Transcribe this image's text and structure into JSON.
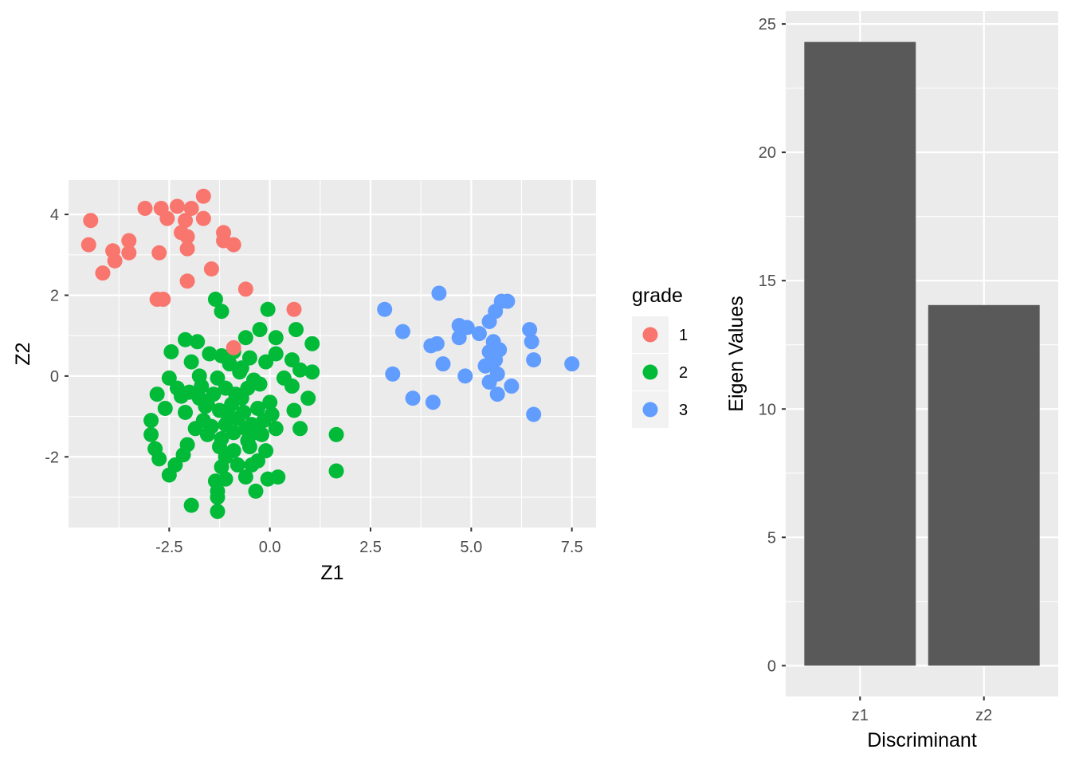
{
  "chart_data": [
    {
      "type": "scatter",
      "xlabel": "Z1",
      "ylabel": "Z2",
      "xlim": [
        -5.0,
        8.1
      ],
      "ylim": [
        -3.75,
        4.85
      ],
      "xticks": [
        -2.5,
        0.0,
        2.5,
        5.0,
        7.5
      ],
      "xtick_labels": [
        "-2.5",
        "0.0",
        "2.5",
        "5.0",
        "7.5"
      ],
      "yticks": [
        -2,
        0,
        2,
        4
      ],
      "ytick_labels": [
        "-2",
        "0",
        "2",
        "4"
      ],
      "grid": true,
      "legend": {
        "title": "grade",
        "placement": "right",
        "entries": [
          {
            "label": "1",
            "color": "#F8766D"
          },
          {
            "label": "2",
            "color": "#00BA38"
          },
          {
            "label": "3",
            "color": "#619CFF"
          }
        ]
      },
      "series": [
        {
          "name": "1",
          "color": "#F8766D",
          "points": [
            [
              -4.45,
              3.85
            ],
            [
              -4.5,
              3.25
            ],
            [
              -3.9,
              3.1
            ],
            [
              -3.85,
              2.85
            ],
            [
              -4.15,
              2.55
            ],
            [
              -3.5,
              3.35
            ],
            [
              -3.5,
              3.05
            ],
            [
              -3.1,
              4.15
            ],
            [
              -2.7,
              4.15
            ],
            [
              -2.55,
              3.9
            ],
            [
              -2.3,
              4.2
            ],
            [
              -1.95,
              4.15
            ],
            [
              -1.65,
              4.45
            ],
            [
              -1.65,
              3.9
            ],
            [
              -2.1,
              3.85
            ],
            [
              -2.2,
              3.55
            ],
            [
              -2.05,
              3.45
            ],
            [
              -2.05,
              3.15
            ],
            [
              -2.75,
              3.05
            ],
            [
              -1.15,
              3.55
            ],
            [
              -1.15,
              3.35
            ],
            [
              -0.9,
              3.25
            ],
            [
              -1.45,
              2.65
            ],
            [
              -2.05,
              2.35
            ],
            [
              -2.8,
              1.9
            ],
            [
              -2.65,
              1.9
            ],
            [
              -0.6,
              2.15
            ],
            [
              0.6,
              1.65
            ],
            [
              -0.9,
              0.7
            ]
          ]
        },
        {
          "name": "2",
          "color": "#00BA38",
          "points": [
            [
              -1.35,
              1.9
            ],
            [
              -1.2,
              1.6
            ],
            [
              -0.05,
              1.65
            ],
            [
              -2.1,
              0.9
            ],
            [
              -1.8,
              0.85
            ],
            [
              -0.6,
              0.95
            ],
            [
              -0.25,
              1.15
            ],
            [
              0.15,
              0.95
            ],
            [
              0.65,
              1.15
            ],
            [
              1.05,
              0.8
            ],
            [
              -2.45,
              0.6
            ],
            [
              -1.5,
              0.55
            ],
            [
              -1.2,
              0.5
            ],
            [
              -0.9,
              0.6
            ],
            [
              -0.5,
              0.45
            ],
            [
              0.15,
              0.55
            ],
            [
              0.55,
              0.4
            ],
            [
              -1.95,
              0.35
            ],
            [
              -1.0,
              0.3
            ],
            [
              -0.7,
              0.2
            ],
            [
              -0.1,
              0.35
            ],
            [
              0.75,
              0.15
            ],
            [
              1.05,
              0.1
            ],
            [
              -2.5,
              -0.05
            ],
            [
              -1.75,
              0.0
            ],
            [
              -1.3,
              -0.05
            ],
            [
              -0.75,
              0.1
            ],
            [
              -0.4,
              -0.1
            ],
            [
              0.35,
              -0.05
            ],
            [
              0.55,
              -0.25
            ],
            [
              -2.8,
              -0.45
            ],
            [
              -2.3,
              -0.3
            ],
            [
              -2.0,
              -0.4
            ],
            [
              -1.7,
              -0.25
            ],
            [
              -1.4,
              -0.45
            ],
            [
              -1.1,
              -0.3
            ],
            [
              -0.85,
              -0.45
            ],
            [
              -0.55,
              -0.3
            ],
            [
              -0.25,
              -0.2
            ],
            [
              0.0,
              -0.65
            ],
            [
              0.95,
              -0.55
            ],
            [
              -2.6,
              -0.8
            ],
            [
              -2.1,
              -0.9
            ],
            [
              -1.6,
              -0.75
            ],
            [
              -1.25,
              -0.85
            ],
            [
              -0.95,
              -0.7
            ],
            [
              -0.65,
              -0.9
            ],
            [
              -0.3,
              -0.8
            ],
            [
              0.05,
              -0.95
            ],
            [
              0.6,
              -0.85
            ],
            [
              -2.95,
              -1.1
            ],
            [
              -1.65,
              -1.1
            ],
            [
              -1.45,
              -1.25
            ],
            [
              -1.1,
              -1.2
            ],
            [
              -0.8,
              -1.05
            ],
            [
              -0.45,
              -1.2
            ],
            [
              -0.15,
              -1.1
            ],
            [
              0.15,
              -1.3
            ],
            [
              0.75,
              -1.3
            ],
            [
              -2.95,
              -1.45
            ],
            [
              -1.55,
              -1.45
            ],
            [
              -1.2,
              -1.55
            ],
            [
              -0.9,
              -1.4
            ],
            [
              -0.55,
              -1.6
            ],
            [
              -0.2,
              -1.45
            ],
            [
              -2.85,
              -1.8
            ],
            [
              -2.05,
              -1.7
            ],
            [
              -1.25,
              -1.75
            ],
            [
              -0.9,
              -1.85
            ],
            [
              -0.5,
              -1.75
            ],
            [
              -0.1,
              -1.85
            ],
            [
              -2.75,
              -2.05
            ],
            [
              -2.15,
              -1.95
            ],
            [
              -1.1,
              -2.0
            ],
            [
              -0.3,
              -2.1
            ],
            [
              1.65,
              -1.45
            ],
            [
              -2.35,
              -2.2
            ],
            [
              -1.2,
              -2.25
            ],
            [
              -0.8,
              -2.2
            ],
            [
              -0.45,
              -2.2
            ],
            [
              -2.5,
              -2.45
            ],
            [
              -1.35,
              -2.6
            ],
            [
              -1.1,
              -2.55
            ],
            [
              -0.6,
              -2.5
            ],
            [
              -0.05,
              -2.55
            ],
            [
              0.2,
              -2.5
            ],
            [
              1.65,
              -2.35
            ],
            [
              -1.3,
              -2.85
            ],
            [
              -0.35,
              -2.85
            ],
            [
              -1.3,
              -3.0
            ],
            [
              -1.95,
              -3.2
            ],
            [
              -1.3,
              -3.35
            ],
            [
              -1.75,
              -0.55
            ],
            [
              -1.05,
              -0.95
            ],
            [
              -0.7,
              -0.55
            ],
            [
              -0.35,
              -1.4
            ],
            [
              -0.6,
              -1.3
            ],
            [
              -1.55,
              -0.7
            ],
            [
              -1.85,
              -1.3
            ],
            [
              -2.2,
              -0.5
            ]
          ]
        },
        {
          "name": "3",
          "color": "#619CFF",
          "points": [
            [
              2.85,
              1.65
            ],
            [
              4.2,
              2.05
            ],
            [
              3.3,
              1.1
            ],
            [
              4.0,
              0.75
            ],
            [
              4.15,
              0.8
            ],
            [
              4.7,
              1.25
            ],
            [
              4.9,
              1.2
            ],
            [
              4.7,
              0.95
            ],
            [
              5.2,
              1.05
            ],
            [
              5.45,
              1.35
            ],
            [
              5.6,
              1.6
            ],
            [
              5.75,
              1.85
            ],
            [
              5.9,
              1.85
            ],
            [
              6.45,
              1.15
            ],
            [
              6.5,
              0.85
            ],
            [
              4.3,
              0.3
            ],
            [
              3.05,
              0.05
            ],
            [
              3.55,
              -0.55
            ],
            [
              4.05,
              -0.65
            ],
            [
              4.85,
              0.0
            ],
            [
              5.35,
              0.25
            ],
            [
              5.45,
              0.6
            ],
            [
              5.55,
              0.85
            ],
            [
              5.7,
              0.65
            ],
            [
              5.5,
              0.35
            ],
            [
              5.65,
              0.05
            ],
            [
              5.45,
              -0.15
            ],
            [
              5.65,
              -0.45
            ],
            [
              6.0,
              -0.25
            ],
            [
              6.55,
              0.4
            ],
            [
              7.5,
              0.3
            ],
            [
              6.55,
              -0.95
            ],
            [
              5.6,
              0.4
            ]
          ]
        }
      ]
    },
    {
      "type": "bar",
      "xlabel": "Discriminant",
      "ylabel": "Eigen Values",
      "categories": [
        "z1",
        "z2"
      ],
      "values": [
        24.3,
        14.05
      ],
      "ylim": [
        -1.2,
        25.5
      ],
      "yticks": [
        0,
        5,
        10,
        15,
        20,
        25
      ],
      "ytick_labels": [
        "0",
        "5",
        "10",
        "15",
        "20",
        "25"
      ],
      "bar_color": "#595959",
      "grid": true
    }
  ]
}
